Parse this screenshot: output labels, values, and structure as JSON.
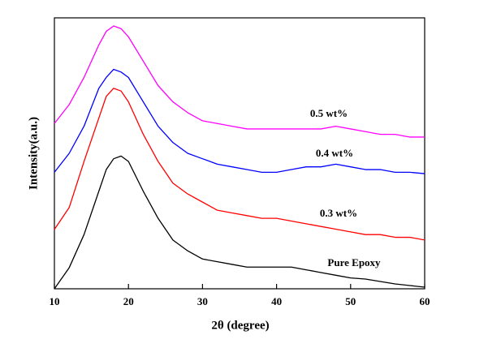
{
  "chart_data": {
    "type": "line",
    "xlabel": "2θ (degree)",
    "ylabel": "Intensity(a.u.)",
    "x": [
      10,
      12,
      14,
      16,
      17,
      18,
      19,
      20,
      22,
      24,
      26,
      28,
      30,
      32,
      34,
      36,
      38,
      40,
      42,
      44,
      46,
      48,
      50,
      52,
      54,
      56,
      58,
      60
    ],
    "xlim": [
      10,
      60
    ],
    "xticks": [
      10,
      20,
      30,
      40,
      50,
      60
    ],
    "ylim": [
      0,
      100
    ],
    "series": [
      {
        "name": "Pure Epoxy",
        "color": "#000000",
        "values": [
          0,
          7.8,
          20,
          36,
          44,
          48,
          49,
          47,
          36,
          26,
          18,
          14,
          11,
          10,
          9,
          8,
          8,
          8,
          8,
          7,
          6,
          5,
          4,
          3.6,
          2.7,
          1.8,
          1.2,
          0.6
        ]
      },
      {
        "name": "0.3 wt%",
        "color": "#ff0000",
        "values": [
          21.9,
          30,
          47,
          63,
          71,
          74,
          73,
          69,
          57,
          47,
          39,
          35,
          32,
          29,
          28,
          27,
          26,
          26,
          25,
          24,
          23,
          22,
          21,
          20,
          20,
          19,
          19,
          18
        ]
      },
      {
        "name": "0.4 wt%",
        "color": "#0000ff",
        "values": [
          43,
          50,
          60,
          74,
          78,
          81,
          80,
          78,
          69,
          60,
          54,
          50,
          48,
          46,
          45,
          44,
          43,
          43,
          44,
          45,
          45,
          46,
          45,
          44,
          44,
          43,
          43,
          42.5
        ]
      },
      {
        "name": "0.5 wt%",
        "color": "#ff00ff",
        "values": [
          61,
          68,
          78,
          90,
          95,
          97,
          96,
          93,
          84,
          75,
          69,
          65,
          62,
          61,
          60,
          59,
          59,
          59,
          59,
          59,
          59,
          60,
          59,
          58,
          57,
          57,
          56,
          56
        ]
      }
    ]
  }
}
